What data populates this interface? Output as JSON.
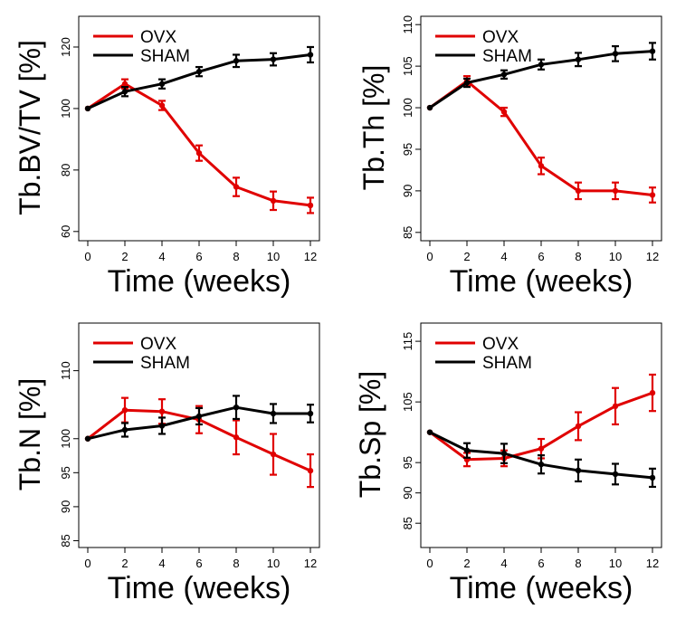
{
  "colors": {
    "ovx": "#e00000",
    "sham": "#000000"
  },
  "chart_data": [
    {
      "type": "line",
      "x": [
        0,
        2,
        4,
        6,
        8,
        10,
        12
      ],
      "xlabel": "Time (weeks)",
      "ylabel": "Tb.BV/TV [%]",
      "xlim": [
        0,
        12
      ],
      "ylim": [
        57,
        130
      ],
      "xticks": [
        "0",
        "2",
        "4",
        "6",
        "8",
        "10",
        "12"
      ],
      "yticks": [
        "60",
        "80",
        "100",
        "120"
      ],
      "grid": false,
      "legend_position": "top-left",
      "series": [
        {
          "name": "OVX",
          "values": [
            100,
            108,
            101,
            85.5,
            74.5,
            70,
            68.5
          ],
          "errors": [
            0,
            1.5,
            1.5,
            2.5,
            3,
            3,
            2.5
          ]
        },
        {
          "name": "SHAM",
          "values": [
            100,
            105.5,
            108,
            112,
            115.5,
            116,
            117.5
          ],
          "errors": [
            0,
            1.5,
            1.5,
            1.5,
            2,
            2,
            2.5
          ]
        }
      ]
    },
    {
      "type": "line",
      "x": [
        0,
        2,
        4,
        6,
        8,
        10,
        12
      ],
      "xlabel": "Time (weeks)",
      "ylabel": "Tb.Th [%]",
      "xlim": [
        0,
        12
      ],
      "ylim": [
        84,
        111
      ],
      "xticks": [
        "0",
        "2",
        "4",
        "6",
        "8",
        "10",
        "12"
      ],
      "yticks": [
        "85",
        "90",
        "95",
        "100",
        "105",
        "110"
      ],
      "grid": false,
      "legend_position": "top-left",
      "series": [
        {
          "name": "OVX",
          "values": [
            100,
            103.2,
            99.5,
            93,
            90,
            90,
            89.5
          ],
          "errors": [
            0,
            0.6,
            0.5,
            1,
            1,
            1,
            0.9
          ]
        },
        {
          "name": "SHAM",
          "values": [
            100,
            103,
            104,
            105.2,
            105.8,
            106.5,
            106.8
          ],
          "errors": [
            0,
            0.5,
            0.5,
            0.6,
            0.8,
            0.9,
            1
          ]
        }
      ]
    },
    {
      "type": "line",
      "x": [
        0,
        2,
        4,
        6,
        8,
        10,
        12
      ],
      "xlabel": "Time (weeks)",
      "ylabel": "Tb.N [%]",
      "xlim": [
        0,
        12
      ],
      "ylim": [
        84,
        117
      ],
      "xticks": [
        "0",
        "2",
        "4",
        "6",
        "8",
        "10",
        "12"
      ],
      "yticks": [
        "85",
        "90",
        "95",
        "100",
        "110"
      ],
      "grid": false,
      "legend_position": "top-left",
      "series": [
        {
          "name": "OVX",
          "values": [
            100,
            104.2,
            104,
            102.8,
            100.2,
            97.7,
            95.3
          ],
          "errors": [
            0,
            1.8,
            1.8,
            2,
            2.5,
            3,
            2.4
          ]
        },
        {
          "name": "SHAM",
          "values": [
            100,
            101.3,
            101.9,
            103.3,
            104.6,
            103.7,
            103.7
          ],
          "errors": [
            0,
            1,
            1.2,
            1.2,
            1.7,
            1.4,
            1.3
          ]
        }
      ]
    },
    {
      "type": "line",
      "x": [
        0,
        2,
        4,
        6,
        8,
        10,
        12
      ],
      "xlabel": "Time (weeks)",
      "ylabel": "Tb.Sp [%]",
      "xlim": [
        0,
        12
      ],
      "ylim": [
        81,
        118
      ],
      "xticks": [
        "0",
        "2",
        "4",
        "6",
        "8",
        "10",
        "12"
      ],
      "yticks": [
        "85",
        "90",
        "95",
        "105",
        "115"
      ],
      "grid": false,
      "legend_position": "top-left",
      "series": [
        {
          "name": "OVX",
          "values": [
            100,
            95.5,
            95.7,
            97.3,
            101,
            104.3,
            106.5
          ],
          "errors": [
            0,
            1.1,
            1.3,
            1.6,
            2.3,
            3,
            3
          ]
        },
        {
          "name": "SHAM",
          "values": [
            100,
            97,
            96.5,
            94.7,
            93.7,
            93.1,
            92.5
          ],
          "errors": [
            0,
            1.2,
            1.6,
            1.5,
            1.8,
            1.7,
            1.5
          ]
        }
      ]
    }
  ]
}
